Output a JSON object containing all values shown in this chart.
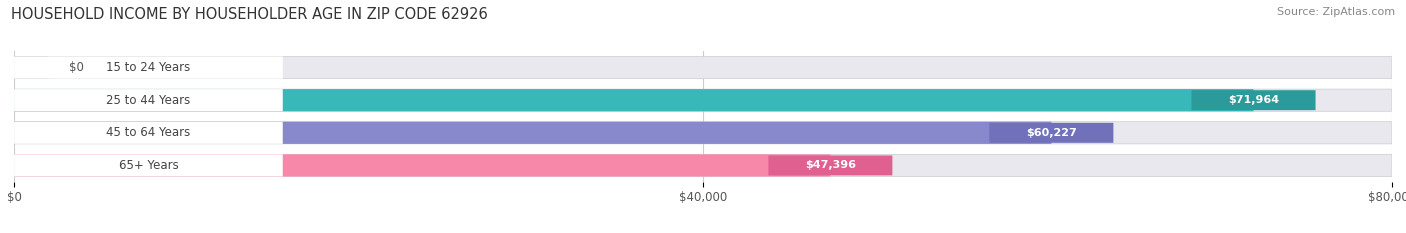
{
  "title": "HOUSEHOLD INCOME BY HOUSEHOLDER AGE IN ZIP CODE 62926",
  "source": "Source: ZipAtlas.com",
  "categories": [
    "15 to 24 Years",
    "25 to 44 Years",
    "45 to 64 Years",
    "65+ Years"
  ],
  "values": [
    0,
    71964,
    60227,
    47396
  ],
  "labels": [
    "$0",
    "$71,964",
    "$60,227",
    "$47,396"
  ],
  "bar_colors": [
    "#c9a0c9",
    "#38b8b8",
    "#8888cc",
    "#f888aa"
  ],
  "bar_bg_color": "#e8e8ee",
  "label_bg_darker": [
    "#b088b0",
    "#2a9a9a",
    "#7070bb",
    "#e06090"
  ],
  "xlim": [
    0,
    80000
  ],
  "xticks": [
    0,
    40000,
    80000
  ],
  "xticklabels": [
    "$0",
    "$40,000",
    "$80,000"
  ],
  "title_fontsize": 10.5,
  "source_fontsize": 8,
  "bar_height": 0.68,
  "figsize": [
    14.06,
    2.33
  ],
  "dpi": 100
}
